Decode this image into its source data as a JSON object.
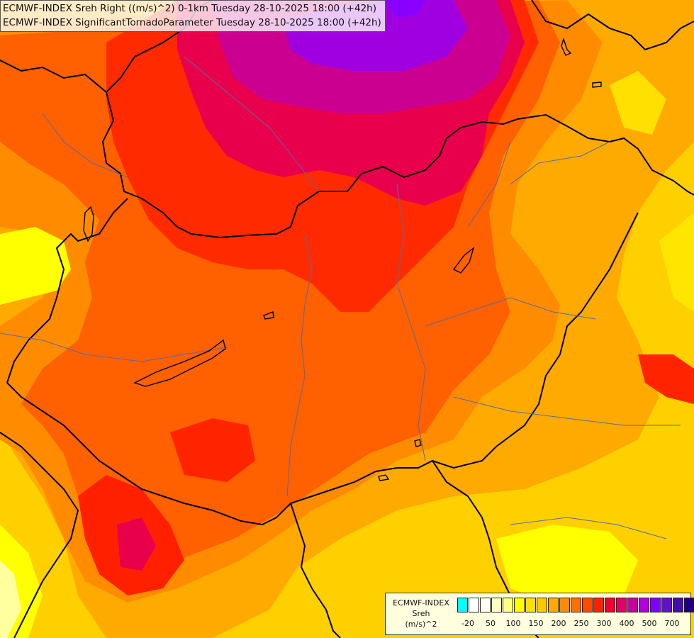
{
  "header": {
    "line1": "ECMWF-INDEX Sreh Right ((m/s)^2) 0-1km Tuesday 28-10-2025 18:00 (+42h)",
    "line2": "ECMWF-INDEX SignificantTornadoParameter Tuesday 28-10-2025 18:00 (+42h)"
  },
  "legend": {
    "title": "ECMWF-INDEX",
    "variable": "Sreh",
    "unit": "(m/s)^2",
    "swatch_colors": [
      "#00ffff",
      "#ffffff",
      "#fffff0",
      "#ffffc0",
      "#ffff80",
      "#ffff00",
      "#ffe000",
      "#ffc800",
      "#ffaa00",
      "#ff8c00",
      "#ff6e00",
      "#ff4a00",
      "#ff2000",
      "#f00030",
      "#e0006a",
      "#c800a0",
      "#b000e0",
      "#8000ff",
      "#6010d0",
      "#4010a8",
      "#200080"
    ],
    "tick_labels": [
      "-20",
      "50",
      "100",
      "150",
      "200",
      "250",
      "300",
      "400",
      "500",
      "700"
    ]
  },
  "colors": {
    "sreh_50": "#ffff00",
    "sreh_100": "#ffd000",
    "sreh_150": "#ffaa00",
    "sreh_200": "#ff8000",
    "sreh_250": "#ff5000",
    "sreh_300": "#ff1a00",
    "sreh_350": "#e8004c",
    "sreh_400": "#cc0090",
    "sreh_500": "#a000e0"
  }
}
